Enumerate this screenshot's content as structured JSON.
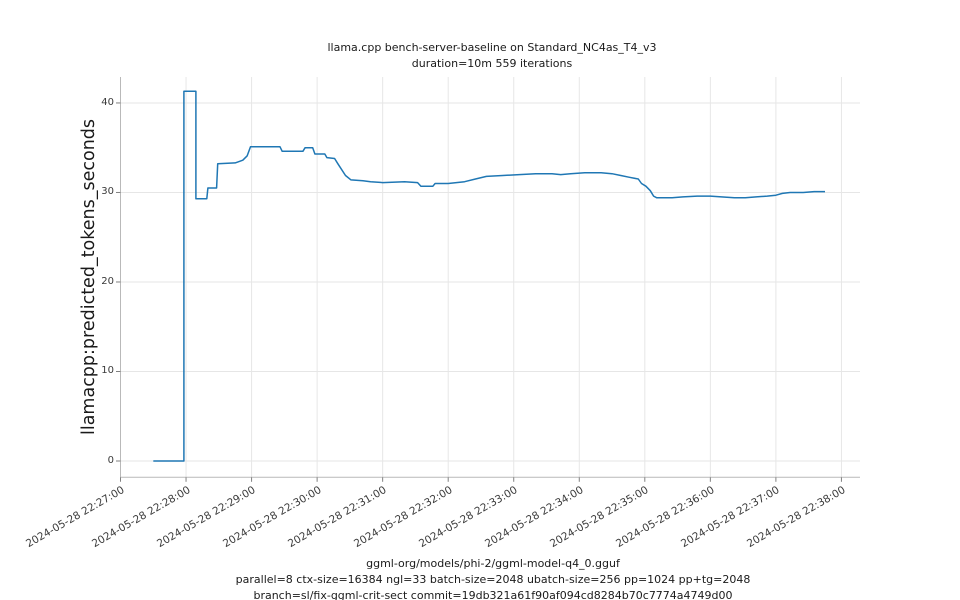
{
  "chart_data": {
    "type": "line",
    "title": "llama.cpp bench-server-baseline on Standard_NC4as_T4_v3",
    "subtitle": "duration=10m 559 iterations",
    "ylabel": "llamacpp:predicted_tokens_seconds",
    "xlabel_lines": [
      "ggml-org/models/phi-2/ggml-model-q4_0.gguf",
      "parallel=8 ctx-size=16384 ngl=33 batch-size=2048 ubatch-size=256 pp=1024 pp+tg=2048",
      "branch=sl/fix-ggml-crit-sect commit=19db321a61f90af094cd8284b70c7774a4749d00"
    ],
    "y_ticks": [
      0,
      10,
      20,
      30,
      40
    ],
    "x_tick_labels": [
      "2024-05-28 22:27:00",
      "2024-05-28 22:28:00",
      "2024-05-28 22:29:00",
      "2024-05-28 22:30:00",
      "2024-05-28 22:31:00",
      "2024-05-28 22:32:00",
      "2024-05-28 22:33:00",
      "2024-05-28 22:34:00",
      "2024-05-28 22:35:00",
      "2024-05-28 22:36:00",
      "2024-05-28 22:37:00",
      "2024-05-28 22:38:00"
    ],
    "x_tick_interval_seconds": 60,
    "xlim_seconds": [
      0,
      677
    ],
    "ylim": [
      -1.82,
      42.9
    ],
    "grid": true,
    "legend": "none",
    "series": [
      {
        "name": "llamacpp:predicted_tokens_seconds",
        "color": "#1f77b4",
        "points_seconds_value": [
          [
            30,
            0
          ],
          [
            58,
            0
          ],
          [
            58,
            41.3
          ],
          [
            69,
            41.3
          ],
          [
            69,
            29.3
          ],
          [
            79,
            29.3
          ],
          [
            80,
            30.5
          ],
          [
            88,
            30.5
          ],
          [
            89,
            33.2
          ],
          [
            105,
            33.3
          ],
          [
            112,
            33.6
          ],
          [
            116,
            34.1
          ],
          [
            119,
            35.1
          ],
          [
            146,
            35.1
          ],
          [
            148,
            34.6
          ],
          [
            167,
            34.6
          ],
          [
            169,
            35.0
          ],
          [
            176,
            35.0
          ],
          [
            178,
            34.3
          ],
          [
            187,
            34.3
          ],
          [
            189,
            33.9
          ],
          [
            196,
            33.8
          ],
          [
            199,
            33.2
          ],
          [
            206,
            31.9
          ],
          [
            211,
            31.4
          ],
          [
            222,
            31.3
          ],
          [
            229,
            31.2
          ],
          [
            240,
            31.1
          ],
          [
            260,
            31.2
          ],
          [
            272,
            31.1
          ],
          [
            275,
            30.7
          ],
          [
            286,
            30.7
          ],
          [
            288,
            31.0
          ],
          [
            300,
            31.0
          ],
          [
            315,
            31.2
          ],
          [
            325,
            31.5
          ],
          [
            335,
            31.8
          ],
          [
            350,
            31.9
          ],
          [
            365,
            32.0
          ],
          [
            380,
            32.1
          ],
          [
            395,
            32.1
          ],
          [
            403,
            32.0
          ],
          [
            412,
            32.1
          ],
          [
            425,
            32.2
          ],
          [
            440,
            32.2
          ],
          [
            450,
            32.1
          ],
          [
            458,
            31.9
          ],
          [
            466,
            31.7
          ],
          [
            474,
            31.5
          ],
          [
            477,
            31.0
          ],
          [
            481,
            30.7
          ],
          [
            485,
            30.2
          ],
          [
            488,
            29.6
          ],
          [
            491,
            29.4
          ],
          [
            505,
            29.4
          ],
          [
            515,
            29.5
          ],
          [
            528,
            29.6
          ],
          [
            540,
            29.6
          ],
          [
            550,
            29.5
          ],
          [
            562,
            29.4
          ],
          [
            572,
            29.4
          ],
          [
            582,
            29.5
          ],
          [
            592,
            29.6
          ],
          [
            600,
            29.7
          ],
          [
            606,
            29.9
          ],
          [
            613,
            30.0
          ],
          [
            625,
            30.0
          ],
          [
            635,
            30.1
          ],
          [
            645,
            30.1
          ]
        ]
      }
    ]
  }
}
